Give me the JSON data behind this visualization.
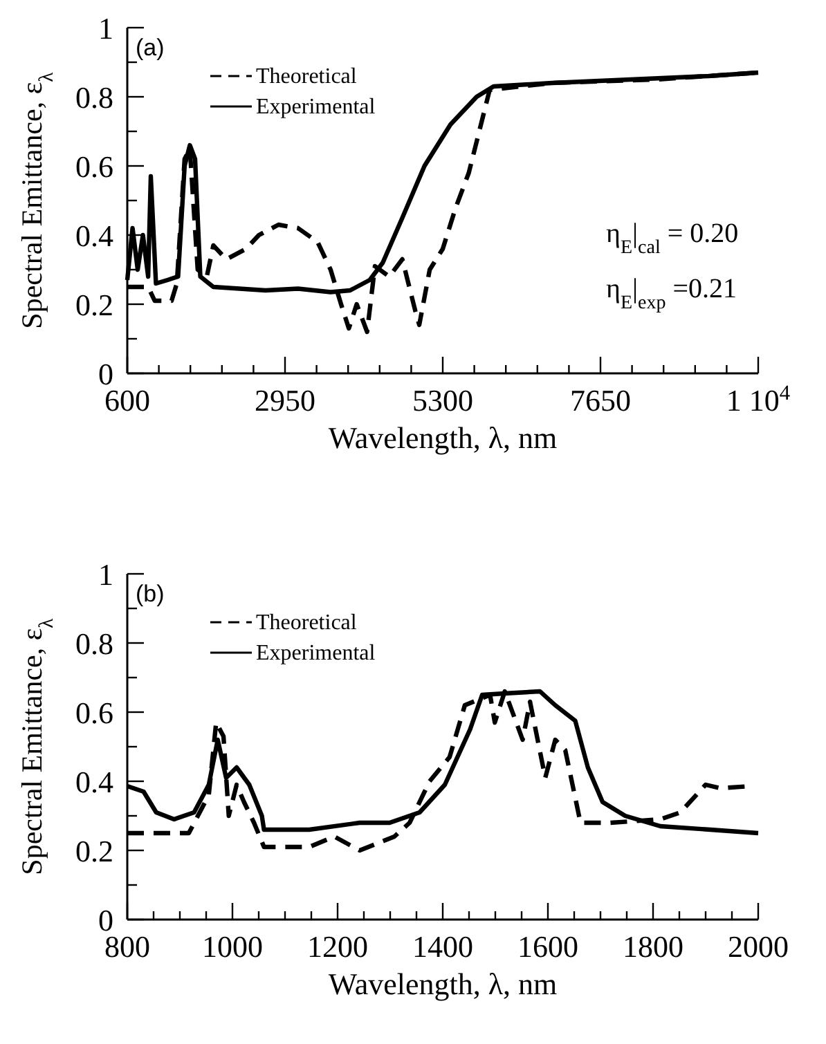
{
  "chart_data": [
    {
      "type": "line",
      "title": "(a)",
      "xlabel": "Wavelength, λ, nm",
      "ylabel": "Spectral Emittance, ε$_{λ}$",
      "xlim": [
        600,
        10000
      ],
      "ylim": [
        0,
        1
      ],
      "xticks": [
        600,
        {
          "value": 1070,
          "label": null
        },
        {
          "value": 1540,
          "label": null
        },
        {
          "value": 2010,
          "label": null
        },
        {
          "value": 2480,
          "label": null
        },
        2950,
        {
          "value": 3420,
          "label": null
        },
        {
          "value": 3890,
          "label": null
        },
        {
          "value": 4360,
          "label": null
        },
        {
          "value": 4830,
          "label": null
        },
        5300,
        {
          "value": 5770,
          "label": null
        },
        {
          "value": 6240,
          "label": null
        },
        {
          "value": 6710,
          "label": null
        },
        {
          "value": 7180,
          "label": null
        },
        7650,
        {
          "value": 8120,
          "label": null
        },
        {
          "value": 8590,
          "label": null
        },
        {
          "value": 9060,
          "label": null
        },
        {
          "value": 9530,
          "label": null
        },
        {
          "value": 10000,
          "label": "1 10$^{4}$"
        }
      ],
      "yticks": [
        0,
        {
          "value": 0.1,
          "label": null
        },
        0.2,
        {
          "value": 0.3,
          "label": null
        },
        0.4,
        {
          "value": 0.5,
          "label": null
        },
        0.6,
        {
          "value": 0.7,
          "label": null
        },
        0.8,
        {
          "value": 0.9,
          "label": null
        },
        1
      ],
      "grid": false,
      "legend": "top left",
      "marker": "none",
      "annotations": [
        "η$_{E}$|$_{cal}$ = 0.20",
        "η$_{E}$|$_{exp}$ =0.21"
      ],
      "series": [
        {
          "name": "Theoretical",
          "color": "#000000",
          "line_style": "dashed",
          "x": [
            600,
            911,
            1008,
            1260,
            1338,
            1454,
            1532,
            1649,
            1785,
            1882,
            2076,
            2367,
            2561,
            2853,
            3144,
            3435,
            3629,
            3785,
            3901,
            4018,
            4173,
            4290,
            4503,
            4698,
            4892,
            4950,
            5106,
            5300,
            5494,
            5688,
            5999,
            6931,
            8485,
            10000
          ],
          "values": [
            0.25,
            0.25,
            0.21,
            0.21,
            0.26,
            0.62,
            0.65,
            0.3,
            0.28,
            0.37,
            0.33,
            0.36,
            0.4,
            0.43,
            0.42,
            0.38,
            0.3,
            0.2,
            0.13,
            0.2,
            0.12,
            0.31,
            0.28,
            0.33,
            0.18,
            0.14,
            0.3,
            0.36,
            0.48,
            0.58,
            0.82,
            0.84,
            0.85,
            0.87
          ]
        },
        {
          "name": "Experimental",
          "color": "#000000",
          "line_style": "solid",
          "x": [
            600,
            678,
            755,
            833,
            911,
            950,
            1027,
            1200,
            1357,
            1454,
            1532,
            1610,
            1688,
            1882,
            2659,
            3144,
            3629,
            3920,
            4212,
            4406,
            4698,
            5028,
            5416,
            5805,
            6057,
            6931,
            8096,
            9261,
            10000
          ],
          "values": [
            0.27,
            0.42,
            0.3,
            0.4,
            0.28,
            0.57,
            0.26,
            0.27,
            0.28,
            0.6,
            0.66,
            0.62,
            0.28,
            0.25,
            0.24,
            0.245,
            0.235,
            0.24,
            0.27,
            0.32,
            0.45,
            0.6,
            0.72,
            0.8,
            0.83,
            0.84,
            0.85,
            0.86,
            0.87
          ]
        }
      ]
    },
    {
      "type": "line",
      "title": "(b)",
      "xlabel": "Wavelength, λ, nm",
      "ylabel": "Spectral Emittance, ε$_{λ}$",
      "xlim": [
        800,
        2000
      ],
      "ylim": [
        0,
        1
      ],
      "xticks": [
        800,
        {
          "value": 850,
          "label": null
        },
        {
          "value": 900,
          "label": null
        },
        {
          "value": 950,
          "label": null
        },
        1000,
        {
          "value": 1050,
          "label": null
        },
        {
          "value": 1100,
          "label": null
        },
        {
          "value": 1150,
          "label": null
        },
        1200,
        {
          "value": 1250,
          "label": null
        },
        {
          "value": 1300,
          "label": null
        },
        {
          "value": 1350,
          "label": null
        },
        1400,
        {
          "value": 1450,
          "label": null
        },
        {
          "value": 1500,
          "label": null
        },
        {
          "value": 1550,
          "label": null
        },
        1600,
        {
          "value": 1650,
          "label": null
        },
        {
          "value": 1700,
          "label": null
        },
        {
          "value": 1750,
          "label": null
        },
        1800,
        {
          "value": 1850,
          "label": null
        },
        {
          "value": 1900,
          "label": null
        },
        {
          "value": 1950,
          "label": null
        },
        2000
      ],
      "yticks": [
        0,
        {
          "value": 0.1,
          "label": null
        },
        0.2,
        {
          "value": 0.3,
          "label": null
        },
        0.4,
        {
          "value": 0.5,
          "label": null
        },
        0.6,
        {
          "value": 0.7,
          "label": null
        },
        0.8,
        {
          "value": 0.9,
          "label": null
        },
        1
      ],
      "grid": false,
      "legend": "top left",
      "marker": "none",
      "series": [
        {
          "name": "Theoretical",
          "color": "#000000",
          "line_style": "dashed",
          "x": [
            800,
            917,
            955,
            969,
            983,
            993,
            1008,
            1022,
            1041,
            1060,
            1146,
            1194,
            1242,
            1308,
            1337,
            1375,
            1413,
            1442,
            1490,
            1499,
            1518,
            1552,
            1566,
            1595,
            1614,
            1633,
            1662,
            1681,
            1719,
            1814,
            1852,
            1900,
            1928,
            1976,
            1985
          ],
          "values": [
            0.25,
            0.25,
            0.36,
            0.57,
            0.53,
            0.3,
            0.39,
            0.34,
            0.28,
            0.21,
            0.21,
            0.24,
            0.2,
            0.24,
            0.28,
            0.4,
            0.47,
            0.62,
            0.65,
            0.57,
            0.66,
            0.52,
            0.63,
            0.41,
            0.52,
            0.49,
            0.28,
            0.28,
            0.28,
            0.29,
            0.31,
            0.39,
            0.38,
            0.385,
            0.37
          ]
        },
        {
          "name": "Experimental",
          "color": "#000000",
          "line_style": "solid",
          "x": [
            800,
            831,
            855,
            889,
            927,
            955,
            972,
            988,
            1008,
            1032,
            1056,
            1060,
            1146,
            1242,
            1299,
            1356,
            1404,
            1452,
            1475,
            1528,
            1585,
            1614,
            1652,
            1676,
            1704,
            1747,
            1814,
            1909,
            2000
          ],
          "values": [
            0.386,
            0.37,
            0.31,
            0.29,
            0.31,
            0.39,
            0.52,
            0.41,
            0.44,
            0.39,
            0.3,
            0.26,
            0.26,
            0.28,
            0.28,
            0.31,
            0.39,
            0.55,
            0.65,
            0.655,
            0.66,
            0.62,
            0.575,
            0.44,
            0.34,
            0.3,
            0.27,
            0.26,
            0.25
          ]
        }
      ]
    }
  ]
}
